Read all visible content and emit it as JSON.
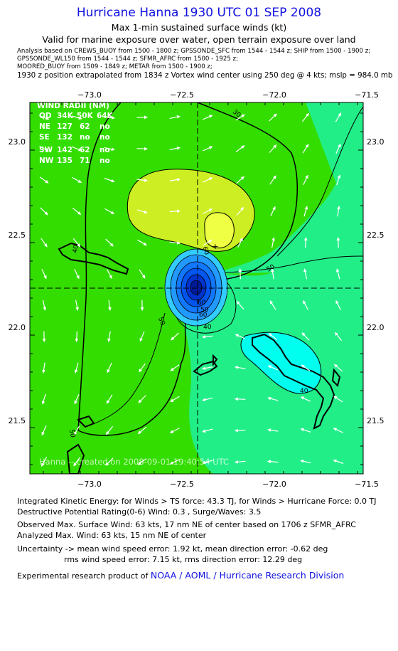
{
  "header": {
    "title": "Hurricane Hanna 1930 UTC 01 SEP 2008",
    "subtitle": "Max 1-min sustained surface winds (kt)",
    "valid": "Valid for marine exposure over water, open terrain exposure over land",
    "analysis_lines": [
      "Analysis based on  CREWS_BUOY from 1500 - 1800 z;  GPSSONDE_SFC from 1544 - 1544 z;  SHIP from 1500 - 1900 z;",
      "GPSSONDE_WL150 from 1544 - 1544 z;  SFMR_AFRC from 1500 - 1925 z;",
      "MOORED_BUOY from 1509 - 1849 z;  METAR from 1500 - 1900 z;"
    ],
    "position_note": "1930 z position extrapolated from 1834 z Vortex wind center using 250 deg @ 4 kts; mslp = 984.0 mb"
  },
  "map": {
    "lon_ticks": [
      "−73.0",
      "−72.5",
      "−72.0",
      "−71.5"
    ],
    "lat_ticks": [
      "23.0",
      "22.5",
      "22.0",
      "21.5"
    ],
    "lon_range": [
      -73.3,
      -71.5
    ],
    "lat_range": [
      21.2,
      23.2
    ],
    "center": {
      "lon": -72.33,
      "lat": 22.21
    },
    "contour_labels": [
      "30",
      "40",
      "50",
      "60",
      "40",
      "50",
      "60",
      "60",
      "50",
      "40",
      "50"
    ],
    "watermark": "Hanna -- created on 2008-09-01 19:40:54 UTC",
    "wind_radii": {
      "title": "WIND RADII (NM)",
      "header": [
        "QD",
        "34K",
        "50K",
        "64K"
      ],
      "rows": [
        [
          "NE",
          "127",
          "62",
          "no"
        ],
        [
          "SE",
          "132",
          "no",
          "no"
        ],
        [
          "SW",
          "142",
          "62",
          "no"
        ],
        [
          "NW",
          "135",
          "71",
          "no"
        ]
      ]
    },
    "colors": {
      "green": "#33dd00",
      "yellowgreen": "#ccee22",
      "yellow": "#eeff44",
      "seagreen": "#22ee88",
      "cyan": "#00ffee",
      "blue_core": "#0066ff",
      "border": "#000000"
    }
  },
  "footer": {
    "ike": "Integrated Kinetic Energy:  for Winds > TS force: 43.3 TJ,  for Winds > Hurricane Force: 0.0 TJ",
    "dp": "Destructive Potential Rating(0-6)   Wind: 0.3 , Surge/Waves: 3.5",
    "observed": "Observed Max. Surface Wind: 63 kts, 17 nm NE of center based on 1706 z SFMR_AFRC",
    "analyzed": "Analyzed Max. Wind: 63 kts, 15 nm NE of center",
    "uncert1": "Uncertainty -> mean wind speed error: 1.92 kt,   mean direction error:  -0.62 deg",
    "uncert2": "rms wind speed error: 7.15 kt,   rms direction error: 12.29 deg",
    "credit_prefix": "Experimental research product of ",
    "credit_org": "NOAA / AOML / Hurricane Research Division"
  }
}
